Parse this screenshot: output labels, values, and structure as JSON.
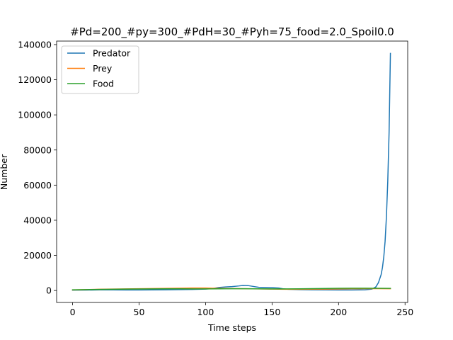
{
  "chart_data": {
    "type": "line",
    "title": "#Pd=200_#py=300_#PdH=30_#Pyh=75_food=2.0_Spoil0.0",
    "xlabel": "Time steps",
    "ylabel": "Number",
    "xlim": [
      -12,
      252
    ],
    "ylim": [
      -6800,
      142000
    ],
    "xticks": [
      0,
      50,
      100,
      150,
      200,
      250
    ],
    "xtick_labels": [
      "0",
      "50",
      "100",
      "150",
      "200",
      "250"
    ],
    "yticks": [
      0,
      20000,
      40000,
      60000,
      80000,
      100000,
      120000,
      140000
    ],
    "ytick_labels": [
      "0",
      "20000",
      "40000",
      "60000",
      "80000",
      "100000",
      "120000",
      "140000"
    ],
    "legend_position": "top-left",
    "grid": false,
    "series": [
      {
        "name": "Predator",
        "color": "#1f77b4",
        "x": [
          0,
          10,
          20,
          30,
          40,
          50,
          60,
          70,
          80,
          90,
          100,
          105,
          110,
          115,
          120,
          125,
          128,
          132,
          136,
          140,
          145,
          150,
          155,
          158,
          162,
          170,
          180,
          190,
          200,
          210,
          220,
          225,
          228,
          230,
          232,
          233,
          234,
          235,
          236,
          237,
          238,
          239
        ],
        "y": [
          200,
          250,
          350,
          350,
          300,
          300,
          350,
          400,
          500,
          600,
          800,
          1100,
          1700,
          2000,
          2200,
          2600,
          2900,
          2800,
          2300,
          1800,
          1700,
          1600,
          1400,
          1000,
          700,
          500,
          400,
          350,
          300,
          300,
          400,
          800,
          2000,
          4500,
          9000,
          13000,
          19000,
          28000,
          42000,
          62000,
          90000,
          135000
        ]
      },
      {
        "name": "Prey",
        "color": "#ff7f0e",
        "x": [
          0,
          10,
          20,
          30,
          40,
          50,
          60,
          70,
          80,
          90,
          100,
          105,
          110,
          120,
          130,
          140,
          150,
          160,
          170,
          180,
          190,
          200,
          210,
          220,
          230,
          239
        ],
        "y": [
          300,
          500,
          700,
          800,
          900,
          1000,
          1100,
          1200,
          1300,
          1400,
          1400,
          1300,
          1200,
          1100,
          1000,
          900,
          800,
          700,
          700,
          750,
          800,
          900,
          1000,
          1050,
          1050,
          1000
        ]
      },
      {
        "name": "Food",
        "color": "#2ca02c",
        "x": [
          0,
          10,
          20,
          30,
          40,
          50,
          60,
          70,
          80,
          90,
          100,
          110,
          120,
          130,
          140,
          150,
          160,
          170,
          180,
          190,
          200,
          210,
          220,
          230,
          239
        ],
        "y": [
          400,
          500,
          600,
          700,
          800,
          850,
          900,
          950,
          950,
          900,
          900,
          950,
          1000,
          1000,
          950,
          900,
          900,
          950,
          1050,
          1150,
          1250,
          1300,
          1300,
          1250,
          1200
        ]
      }
    ]
  }
}
